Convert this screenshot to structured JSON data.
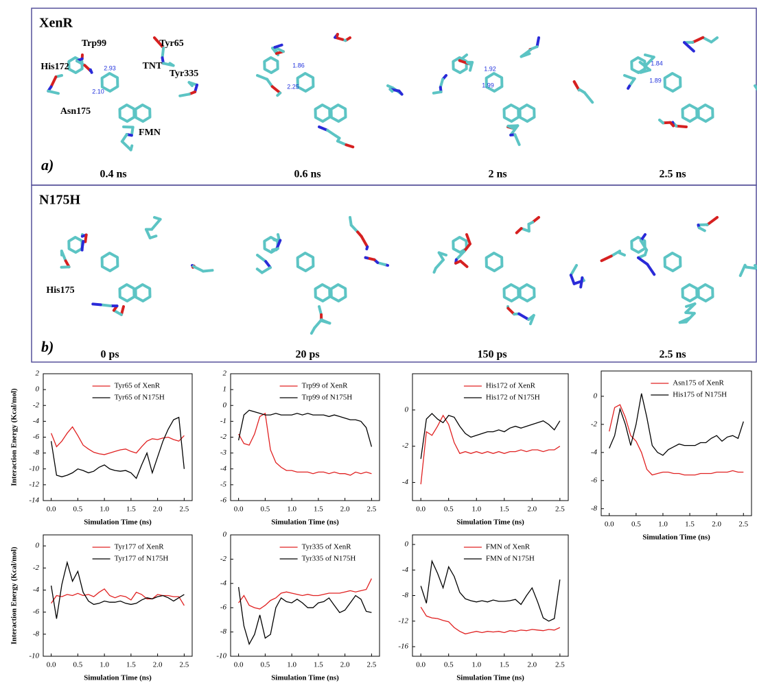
{
  "panels": [
    {
      "title": "XenR",
      "label": "a)",
      "times": [
        "0.4 ns",
        "0.6 ns",
        "2 ns",
        "2.5 ns"
      ],
      "annotations": [
        "Trp99",
        "Tyr65",
        "His172",
        "TNT",
        "Tyr335",
        "Asn175",
        "FMN"
      ],
      "distances": [
        "2.93",
        "2.10",
        "1.86",
        "2.25",
        "1.92",
        "1.99",
        "1.84",
        "1.89"
      ]
    },
    {
      "title": "N175H",
      "label": "b)",
      "times": [
        "0 ps",
        "20 ps",
        "150 ps",
        "2.5 ns"
      ],
      "annotations": [
        "His175"
      ]
    }
  ],
  "chart_data": [
    {
      "type": "line",
      "xlabel": "Simulation Time (ns)",
      "ylabel": "Interaction Energy (Kcal/mol)",
      "x": [
        0,
        0.1,
        0.2,
        0.3,
        0.4,
        0.5,
        0.6,
        0.7,
        0.8,
        0.9,
        1.0,
        1.1,
        1.2,
        1.3,
        1.4,
        1.5,
        1.6,
        1.7,
        1.8,
        1.9,
        2.0,
        2.1,
        2.2,
        2.3,
        2.4,
        2.5
      ],
      "series": [
        {
          "name": "Tyr65 of XenR",
          "color": "#e02020",
          "values": [
            -5.5,
            -7.2,
            -6.5,
            -5.5,
            -4.7,
            -5.8,
            -7.0,
            -7.5,
            -7.9,
            -8.1,
            -8.2,
            -8.0,
            -7.8,
            -7.6,
            -7.5,
            -7.8,
            -8.0,
            -7.2,
            -6.5,
            -6.2,
            -6.3,
            -6.1,
            -6.0,
            -6.3,
            -6.5,
            -5.8
          ]
        },
        {
          "name": "Tyr65 of N175H",
          "color": "#000000",
          "values": [
            -6.5,
            -10.8,
            -11.0,
            -10.8,
            -10.5,
            -10.0,
            -10.2,
            -10.5,
            -10.3,
            -9.8,
            -9.5,
            -10.0,
            -10.2,
            -10.3,
            -10.2,
            -10.5,
            -11.2,
            -9.5,
            -8.0,
            -10.5,
            -8.5,
            -6.5,
            -5.0,
            -3.8,
            -3.5,
            -10.0
          ]
        }
      ],
      "xlim": [
        -0.15,
        2.65
      ],
      "xticks": [
        {
          "value": 0,
          "label": "0.0"
        },
        0.5,
        {
          "value": 1,
          "label": "1.0"
        },
        1.5,
        {
          "value": 2,
          "label": "2.0"
        },
        2.5
      ],
      "ylim": [
        -14,
        2
      ],
      "yticks": [
        -14,
        -12,
        -10,
        -8,
        -6,
        -4,
        -2,
        0,
        2
      ]
    },
    {
      "type": "line",
      "xlabel": "Simulation Time (ns)",
      "x": [
        0,
        0.1,
        0.2,
        0.3,
        0.4,
        0.5,
        0.6,
        0.7,
        0.8,
        0.9,
        1.0,
        1.1,
        1.2,
        1.3,
        1.4,
        1.5,
        1.6,
        1.7,
        1.8,
        1.9,
        2.0,
        2.1,
        2.2,
        2.3,
        2.4,
        2.5
      ],
      "series": [
        {
          "name": "Trp99 of XenR",
          "color": "#e02020",
          "values": [
            -1.8,
            -2.4,
            -2.5,
            -1.8,
            -0.7,
            -0.5,
            -2.8,
            -3.6,
            -3.9,
            -4.1,
            -4.1,
            -4.2,
            -4.2,
            -4.2,
            -4.3,
            -4.2,
            -4.2,
            -4.3,
            -4.2,
            -4.3,
            -4.3,
            -4.4,
            -4.2,
            -4.3,
            -4.2,
            -4.3
          ]
        },
        {
          "name": "Trp99 of N175H",
          "color": "#000000",
          "values": [
            -2.2,
            -0.6,
            -0.3,
            -0.4,
            -0.5,
            -0.6,
            -0.6,
            -0.5,
            -0.6,
            -0.6,
            -0.6,
            -0.5,
            -0.6,
            -0.5,
            -0.6,
            -0.6,
            -0.6,
            -0.7,
            -0.6,
            -0.7,
            -0.8,
            -0.9,
            -0.9,
            -1.0,
            -1.4,
            -2.6
          ]
        }
      ],
      "xlim": [
        -0.15,
        2.65
      ],
      "xticks": [
        {
          "value": 0,
          "label": "0.0"
        },
        0.5,
        {
          "value": 1,
          "label": "1.0"
        },
        1.5,
        {
          "value": 2,
          "label": "2.0"
        },
        2.5
      ],
      "ylim": [
        -6,
        2
      ],
      "yticks": [
        -6,
        -5,
        -4,
        -3,
        -2,
        -1,
        0,
        1,
        2
      ]
    },
    {
      "type": "line",
      "xlabel": "Simulation Time (ns)",
      "x": [
        0,
        0.1,
        0.2,
        0.3,
        0.4,
        0.5,
        0.6,
        0.7,
        0.8,
        0.9,
        1.0,
        1.1,
        1.2,
        1.3,
        1.4,
        1.5,
        1.6,
        1.7,
        1.8,
        1.9,
        2.0,
        2.1,
        2.2,
        2.3,
        2.4,
        2.5
      ],
      "series": [
        {
          "name": "His172 of XenR",
          "color": "#e02020",
          "values": [
            -4.1,
            -1.2,
            -1.4,
            -0.9,
            -0.3,
            -0.8,
            -1.8,
            -2.4,
            -2.3,
            -2.4,
            -2.3,
            -2.4,
            -2.3,
            -2.4,
            -2.3,
            -2.4,
            -2.3,
            -2.3,
            -2.2,
            -2.3,
            -2.2,
            -2.2,
            -2.3,
            -2.2,
            -2.2,
            -2.0
          ]
        },
        {
          "name": "His172 of N175H",
          "color": "#000000",
          "values": [
            -2.7,
            -0.5,
            -0.2,
            -0.5,
            -0.7,
            -0.3,
            -0.4,
            -0.9,
            -1.3,
            -1.5,
            -1.4,
            -1.3,
            -1.2,
            -1.2,
            -1.1,
            -1.2,
            -1.0,
            -0.9,
            -1.0,
            -0.9,
            -0.8,
            -0.7,
            -0.6,
            -0.8,
            -1.1,
            -0.6
          ]
        }
      ],
      "xlim": [
        -0.15,
        2.65
      ],
      "xticks": [
        {
          "value": 0,
          "label": "0.0"
        },
        0.5,
        {
          "value": 1,
          "label": "1.0"
        },
        1.5,
        {
          "value": 2,
          "label": "2.0"
        },
        2.5
      ],
      "ylim": [
        -5,
        2
      ],
      "yticks": [
        -4,
        -2,
        0
      ]
    },
    {
      "type": "line",
      "xlabel": "Simulation Time (ns)",
      "x": [
        0,
        0.1,
        0.2,
        0.3,
        0.4,
        0.5,
        0.6,
        0.7,
        0.8,
        0.9,
        1.0,
        1.1,
        1.2,
        1.3,
        1.4,
        1.5,
        1.6,
        1.7,
        1.8,
        1.9,
        2.0,
        2.1,
        2.2,
        2.3,
        2.4,
        2.5
      ],
      "series": [
        {
          "name": "Asn175 of XenR",
          "color": "#e02020",
          "values": [
            -2.5,
            -0.8,
            -0.6,
            -1.5,
            -2.8,
            -3.2,
            -4.0,
            -5.2,
            -5.6,
            -5.5,
            -5.4,
            -5.4,
            -5.5,
            -5.5,
            -5.6,
            -5.6,
            -5.6,
            -5.5,
            -5.5,
            -5.5,
            -5.4,
            -5.4,
            -5.4,
            -5.3,
            -5.4,
            -5.4
          ]
        },
        {
          "name": "His175 of N175H",
          "color": "#000000",
          "values": [
            -3.7,
            -2.8,
            -0.9,
            -2.0,
            -3.5,
            -2.0,
            0.2,
            -1.5,
            -3.5,
            -4.0,
            -4.2,
            -3.8,
            -3.6,
            -3.4,
            -3.5,
            -3.5,
            -3.5,
            -3.3,
            -3.3,
            -3.0,
            -2.8,
            -3.2,
            -2.9,
            -2.8,
            -3.0,
            -1.8
          ]
        }
      ],
      "xlim": [
        -0.15,
        2.65
      ],
      "xticks": [
        {
          "value": 0,
          "label": "0.0"
        },
        0.5,
        {
          "value": 1,
          "label": "1.0"
        },
        1.5,
        {
          "value": 2,
          "label": "2.0"
        },
        2.5
      ],
      "ylim": [
        -8.5,
        1.8
      ],
      "yticks": [
        -8,
        -6,
        -4,
        -2,
        0
      ]
    },
    {
      "type": "line",
      "xlabel": "Simulation Time (ns)",
      "ylabel": "Interaction Energy (Kcal/mol)",
      "x": [
        0,
        0.1,
        0.2,
        0.3,
        0.4,
        0.5,
        0.6,
        0.7,
        0.8,
        0.9,
        1.0,
        1.1,
        1.2,
        1.3,
        1.4,
        1.5,
        1.6,
        1.7,
        1.8,
        1.9,
        2.0,
        2.1,
        2.2,
        2.3,
        2.4,
        2.5
      ],
      "series": [
        {
          "name": "Tyr177 of XenR",
          "color": "#e02020",
          "values": [
            -5.2,
            -4.5,
            -4.6,
            -4.4,
            -4.5,
            -4.3,
            -4.5,
            -4.4,
            -4.6,
            -4.2,
            -3.9,
            -4.5,
            -4.7,
            -4.5,
            -4.6,
            -4.9,
            -4.2,
            -4.4,
            -4.8,
            -4.8,
            -4.4,
            -4.5,
            -4.5,
            -4.6,
            -4.6,
            -5.4
          ]
        },
        {
          "name": "Tyr177 of N175H",
          "color": "#000000",
          "values": [
            -3.6,
            -6.6,
            -3.5,
            -1.5,
            -3.2,
            -2.3,
            -4.2,
            -5.0,
            -5.3,
            -5.2,
            -5.0,
            -5.1,
            -5.1,
            -5.0,
            -5.2,
            -5.3,
            -5.2,
            -4.9,
            -4.7,
            -4.8,
            -4.6,
            -4.5,
            -4.7,
            -5.0,
            -4.7,
            -4.4
          ]
        }
      ],
      "xlim": [
        -0.15,
        2.65
      ],
      "xticks": [
        {
          "value": 0,
          "label": "0.0"
        },
        0.5,
        {
          "value": 1,
          "label": "1.0"
        },
        1.5,
        {
          "value": 2,
          "label": "2.0"
        },
        2.5
      ],
      "ylim": [
        -10,
        1
      ],
      "yticks": [
        -10,
        -8,
        -6,
        -4,
        -2,
        0
      ]
    },
    {
      "type": "line",
      "xlabel": "Simulation Time (ns)",
      "x": [
        0,
        0.1,
        0.2,
        0.3,
        0.4,
        0.5,
        0.6,
        0.7,
        0.8,
        0.9,
        1.0,
        1.1,
        1.2,
        1.3,
        1.4,
        1.5,
        1.6,
        1.7,
        1.8,
        1.9,
        2.0,
        2.1,
        2.2,
        2.3,
        2.4,
        2.5
      ],
      "series": [
        {
          "name": "Tyr335 of XenR",
          "color": "#e02020",
          "values": [
            -5.6,
            -5.0,
            -5.8,
            -6.0,
            -6.1,
            -5.8,
            -5.4,
            -5.2,
            -4.8,
            -4.7,
            -4.8,
            -4.9,
            -5.0,
            -4.9,
            -5.0,
            -5.0,
            -4.9,
            -4.8,
            -4.8,
            -4.8,
            -4.7,
            -4.6,
            -4.7,
            -4.6,
            -4.5,
            -3.6
          ]
        },
        {
          "name": "Tyr335 of N175H",
          "color": "#000000",
          "values": [
            -4.3,
            -7.5,
            -9.0,
            -8.2,
            -6.6,
            -8.5,
            -8.2,
            -6.0,
            -5.2,
            -5.5,
            -5.6,
            -5.3,
            -5.6,
            -6.0,
            -6.0,
            -5.6,
            -5.5,
            -5.2,
            -5.8,
            -6.4,
            -6.2,
            -5.6,
            -5.0,
            -5.3,
            -6.3,
            -6.4
          ]
        }
      ],
      "xlim": [
        -0.15,
        2.65
      ],
      "xticks": [
        {
          "value": 0,
          "label": "0.0"
        },
        0.5,
        {
          "value": 1,
          "label": "1.0"
        },
        1.5,
        {
          "value": 2,
          "label": "2.0"
        },
        2.5
      ],
      "ylim": [
        -10,
        0
      ],
      "yticks": [
        -10,
        -8,
        -6,
        -4,
        -2,
        0
      ]
    },
    {
      "type": "line",
      "xlabel": "Simulation Time (ns)",
      "x": [
        0,
        0.1,
        0.2,
        0.3,
        0.4,
        0.5,
        0.6,
        0.7,
        0.8,
        0.9,
        1.0,
        1.1,
        1.2,
        1.3,
        1.4,
        1.5,
        1.6,
        1.7,
        1.8,
        1.9,
        2.0,
        2.1,
        2.2,
        2.3,
        2.4,
        2.5
      ],
      "series": [
        {
          "name": "FMN of XenR",
          "color": "#e02020",
          "values": [
            -9.8,
            -11.2,
            -11.5,
            -11.6,
            -11.9,
            -12.1,
            -13.0,
            -13.6,
            -14.0,
            -13.8,
            -13.6,
            -13.8,
            -13.6,
            -13.7,
            -13.6,
            -13.8,
            -13.5,
            -13.6,
            -13.4,
            -13.5,
            -13.3,
            -13.4,
            -13.5,
            -13.3,
            -13.4,
            -13.0
          ]
        },
        {
          "name": "FMN of N175H",
          "color": "#000000",
          "values": [
            -6.5,
            -9.2,
            -2.6,
            -4.5,
            -6.8,
            -3.5,
            -5.0,
            -7.5,
            -8.5,
            -8.8,
            -9.0,
            -8.8,
            -9.0,
            -8.7,
            -8.9,
            -8.9,
            -8.8,
            -8.6,
            -9.4,
            -8.0,
            -6.8,
            -9.0,
            -11.5,
            -12.0,
            -11.6,
            -5.5
          ]
        }
      ],
      "xlim": [
        -0.15,
        2.65
      ],
      "xticks": [
        {
          "value": 0,
          "label": "0.0"
        },
        0.5,
        {
          "value": 1,
          "label": "1.0"
        },
        1.5,
        {
          "value": 2,
          "label": "2.0"
        },
        2.5
      ],
      "ylim": [
        -17.5,
        1.5
      ],
      "yticks": [
        -16,
        -12,
        -8,
        -4,
        0
      ]
    }
  ]
}
